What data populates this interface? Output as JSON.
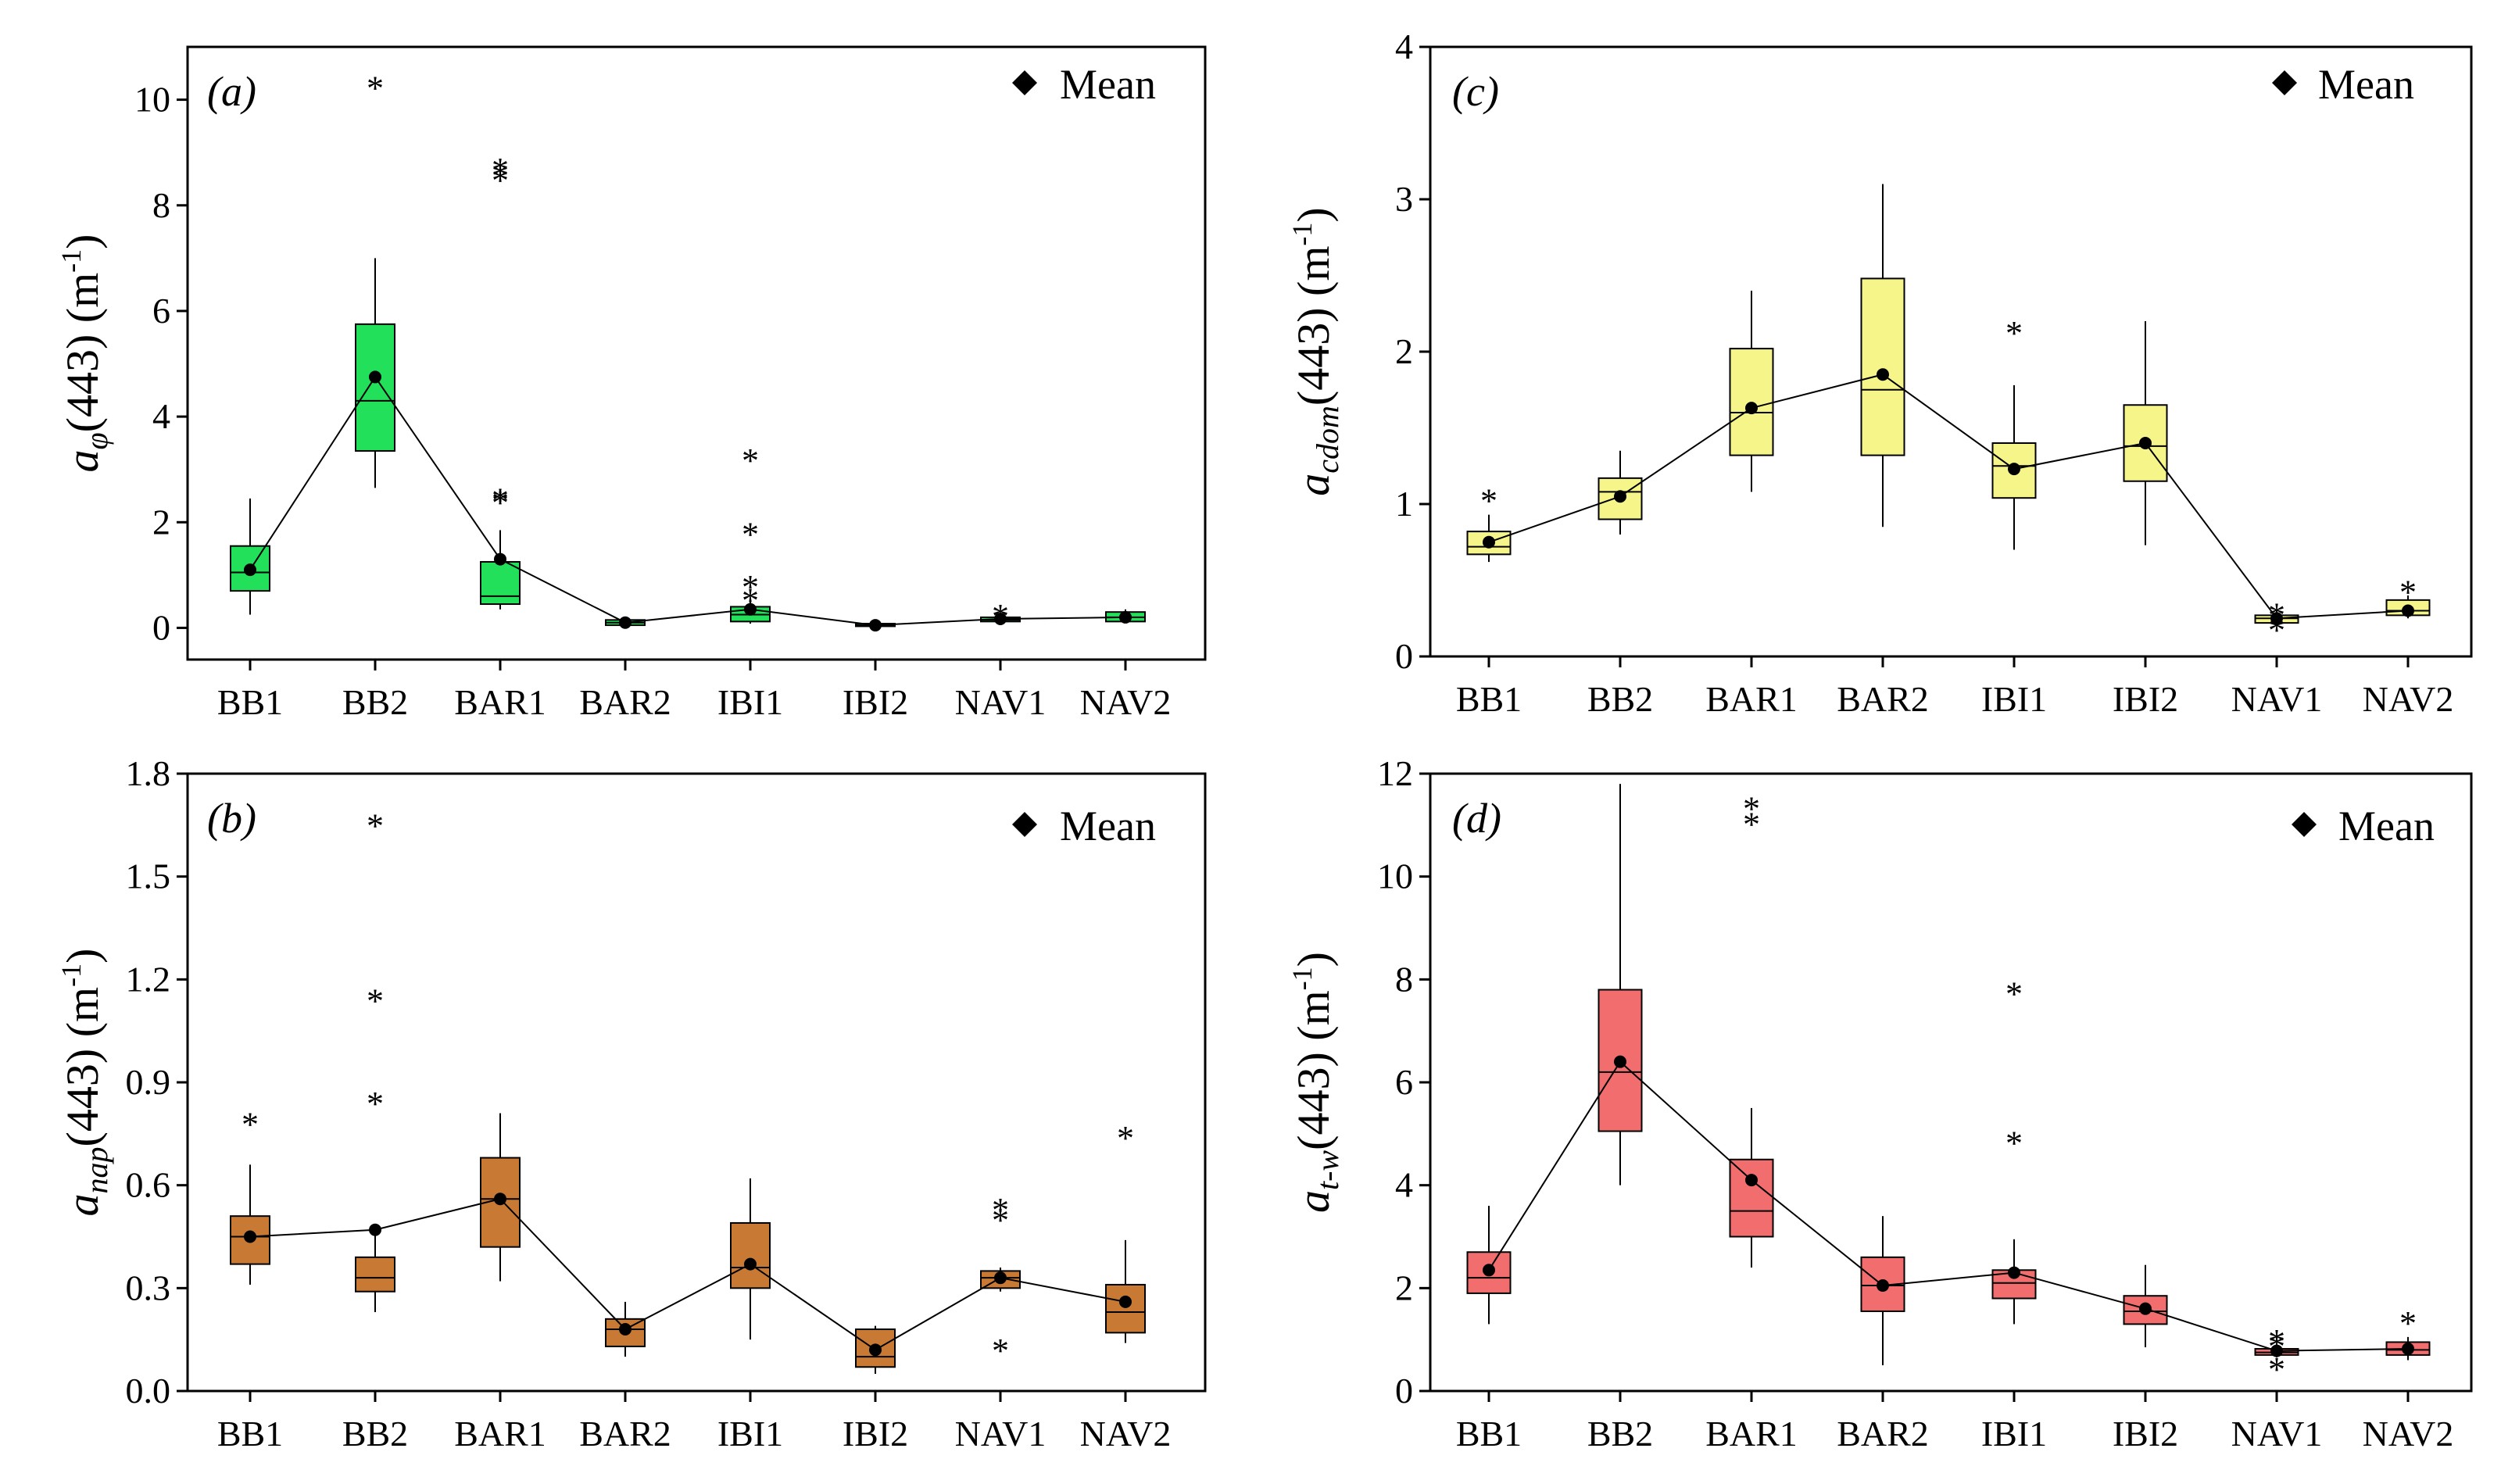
{
  "figure": {
    "legend_label": "Mean",
    "panels": [
      {
        "id": "a",
        "panel_label": "(a)",
        "ylabel_main": "a",
        "ylabel_sub": "φ",
        "ylabel_tail": "(443) (m",
        "ylabel_sup": "-1",
        "ylabel_close": ")",
        "color": "#22e05a"
      },
      {
        "id": "c",
        "panel_label": "(c)",
        "ylabel_main": "a",
        "ylabel_sub": "cdom",
        "ylabel_tail": "(443) (m",
        "ylabel_sup": "-1",
        "ylabel_close": ")",
        "color": "#f5f58a"
      },
      {
        "id": "b",
        "panel_label": "(b)",
        "ylabel_main": "a",
        "ylabel_sub": "nap",
        "ylabel_tail": "(443) (m",
        "ylabel_sup": "-1",
        "ylabel_close": ")",
        "color": "#c87a35"
      },
      {
        "id": "d",
        "panel_label": "(d)",
        "ylabel_main": "a",
        "ylabel_sub": "t-w",
        "ylabel_tail": "(443) (m",
        "ylabel_sup": "-1",
        "ylabel_close": ")",
        "color": "#f26e6e"
      }
    ]
  },
  "chart_data": [
    {
      "type": "box",
      "panel": "a",
      "title": "",
      "categories": [
        "BB1",
        "BB2",
        "BAR1",
        "BAR2",
        "IBI1",
        "IBI2",
        "NAV1",
        "NAV2"
      ],
      "ylim": [
        -0.6,
        11
      ],
      "yticks": [
        0,
        2,
        4,
        6,
        8,
        10
      ],
      "ytick_labels": [
        "0",
        "2",
        "4",
        "6",
        "8",
        "10"
      ],
      "boxes": [
        {
          "q1": 0.7,
          "median": 1.05,
          "q3": 1.55,
          "whisker_low": 0.25,
          "whisker_high": 2.45,
          "mean": 1.1,
          "outliers": []
        },
        {
          "q1": 3.35,
          "median": 4.3,
          "q3": 5.75,
          "whisker_low": 2.65,
          "whisker_high": 7.0,
          "mean": 4.75,
          "outliers": [
            10.3
          ]
        },
        {
          "q1": 0.45,
          "median": 0.6,
          "q3": 1.25,
          "whisker_low": 0.35,
          "whisker_high": 1.85,
          "mean": 1.3,
          "outliers": [
            2.45,
            2.5,
            8.55,
            8.65,
            8.75
          ]
        },
        {
          "q1": 0.05,
          "median": 0.1,
          "q3": 0.15,
          "whisker_low": 0.03,
          "whisker_high": 0.2,
          "mean": 0.1,
          "outliers": []
        },
        {
          "q1": 0.12,
          "median": 0.25,
          "q3": 0.4,
          "whisker_low": 0.08,
          "whisker_high": 0.55,
          "mean": 0.35,
          "outliers": [
            0.6,
            0.85,
            1.85,
            3.25
          ]
        },
        {
          "q1": 0.03,
          "median": 0.05,
          "q3": 0.08,
          "whisker_low": 0.02,
          "whisker_high": 0.1,
          "mean": 0.05,
          "outliers": []
        },
        {
          "q1": 0.12,
          "median": 0.15,
          "q3": 0.2,
          "whisker_low": 0.08,
          "whisker_high": 0.25,
          "mean": 0.17,
          "outliers": [
            0.3
          ]
        },
        {
          "q1": 0.12,
          "median": 0.2,
          "q3": 0.3,
          "whisker_low": 0.1,
          "whisker_high": 0.35,
          "mean": 0.2,
          "outliers": []
        }
      ]
    },
    {
      "type": "box",
      "panel": "c",
      "title": "",
      "categories": [
        "BB1",
        "BB2",
        "BAR1",
        "BAR2",
        "IBI1",
        "IBI2",
        "NAV1",
        "NAV2"
      ],
      "ylim": [
        0,
        4
      ],
      "yticks": [
        0,
        1,
        2,
        3,
        4
      ],
      "ytick_labels": [
        "0",
        "1",
        "2",
        "3",
        "4"
      ],
      "boxes": [
        {
          "q1": 0.67,
          "median": 0.72,
          "q3": 0.82,
          "whisker_low": 0.62,
          "whisker_high": 0.93,
          "mean": 0.75,
          "outliers": [
            1.05
          ]
        },
        {
          "q1": 0.9,
          "median": 1.08,
          "q3": 1.17,
          "whisker_low": 0.8,
          "whisker_high": 1.35,
          "mean": 1.05,
          "outliers": []
        },
        {
          "q1": 1.32,
          "median": 1.6,
          "q3": 2.02,
          "whisker_low": 1.08,
          "whisker_high": 2.4,
          "mean": 1.63,
          "outliers": []
        },
        {
          "q1": 1.32,
          "median": 1.75,
          "q3": 2.48,
          "whisker_low": 0.85,
          "whisker_high": 3.1,
          "mean": 1.85,
          "outliers": []
        },
        {
          "q1": 1.04,
          "median": 1.25,
          "q3": 1.4,
          "whisker_low": 0.7,
          "whisker_high": 1.78,
          "mean": 1.23,
          "outliers": [
            2.15
          ]
        },
        {
          "q1": 1.15,
          "median": 1.38,
          "q3": 1.65,
          "whisker_low": 0.73,
          "whisker_high": 2.2,
          "mean": 1.4,
          "outliers": []
        },
        {
          "q1": 0.22,
          "median": 0.25,
          "q3": 0.27,
          "whisker_low": 0.2,
          "whisker_high": 0.3,
          "mean": 0.25,
          "outliers": [
            0.2,
            0.3
          ]
        },
        {
          "q1": 0.27,
          "median": 0.3,
          "q3": 0.37,
          "whisker_low": 0.25,
          "whisker_high": 0.4,
          "mean": 0.3,
          "outliers": [
            0.45
          ]
        }
      ]
    },
    {
      "type": "box",
      "panel": "b",
      "title": "",
      "categories": [
        "BB1",
        "BB2",
        "BAR1",
        "BAR2",
        "IBI1",
        "IBI2",
        "NAV1",
        "NAV2"
      ],
      "ylim": [
        0,
        1.8
      ],
      "yticks": [
        0,
        0.3,
        0.6,
        0.9,
        1.2,
        1.5,
        1.8
      ],
      "ytick_labels": [
        "0.0",
        "0.3",
        "0.6",
        "0.9",
        "1.2",
        "1.5",
        "1.8"
      ],
      "boxes": [
        {
          "q1": 0.37,
          "median": 0.45,
          "q3": 0.51,
          "whisker_low": 0.31,
          "whisker_high": 0.66,
          "mean": 0.45,
          "outliers": [
            0.79
          ]
        },
        {
          "q1": 0.29,
          "median": 0.33,
          "q3": 0.39,
          "whisker_low": 0.23,
          "whisker_high": 0.47,
          "mean": 0.47,
          "outliers": [
            0.85,
            1.15,
            1.66
          ]
        },
        {
          "q1": 0.42,
          "median": 0.56,
          "q3": 0.68,
          "whisker_low": 0.32,
          "whisker_high": 0.81,
          "mean": 0.56,
          "outliers": []
        },
        {
          "q1": 0.13,
          "median": 0.18,
          "q3": 0.21,
          "whisker_low": 0.1,
          "whisker_high": 0.26,
          "mean": 0.18,
          "outliers": []
        },
        {
          "q1": 0.3,
          "median": 0.36,
          "q3": 0.49,
          "whisker_low": 0.15,
          "whisker_high": 0.62,
          "mean": 0.37,
          "outliers": []
        },
        {
          "q1": 0.07,
          "median": 0.1,
          "q3": 0.18,
          "whisker_low": 0.05,
          "whisker_high": 0.19,
          "mean": 0.12,
          "outliers": []
        },
        {
          "q1": 0.3,
          "median": 0.33,
          "q3": 0.35,
          "whisker_low": 0.29,
          "whisker_high": 0.36,
          "mean": 0.33,
          "outliers": [
            0.13,
            0.51,
            0.54
          ]
        },
        {
          "q1": 0.17,
          "median": 0.23,
          "q3": 0.31,
          "whisker_low": 0.14,
          "whisker_high": 0.44,
          "mean": 0.26,
          "outliers": [
            0.75
          ]
        }
      ]
    },
    {
      "type": "box",
      "panel": "d",
      "title": "",
      "categories": [
        "BB1",
        "BB2",
        "BAR1",
        "BAR2",
        "IBI1",
        "IBI2",
        "NAV1",
        "NAV2"
      ],
      "ylim": [
        0,
        12
      ],
      "yticks": [
        0,
        2,
        4,
        6,
        8,
        10,
        12
      ],
      "ytick_labels": [
        "0",
        "2",
        "4",
        "6",
        "8",
        "10",
        "12"
      ],
      "boxes": [
        {
          "q1": 1.9,
          "median": 2.2,
          "q3": 2.7,
          "whisker_low": 1.3,
          "whisker_high": 3.6,
          "mean": 2.35,
          "outliers": []
        },
        {
          "q1": 5.05,
          "median": 6.2,
          "q3": 7.8,
          "whisker_low": 4.0,
          "whisker_high": 11.8,
          "mean": 6.4,
          "outliers": []
        },
        {
          "q1": 3.0,
          "median": 3.5,
          "q3": 4.5,
          "whisker_low": 2.4,
          "whisker_high": 5.5,
          "mean": 4.1,
          "outliers": [
            11.1,
            11.4
          ]
        },
        {
          "q1": 1.55,
          "median": 2.05,
          "q3": 2.6,
          "whisker_low": 0.5,
          "whisker_high": 3.4,
          "mean": 2.05,
          "outliers": []
        },
        {
          "q1": 1.8,
          "median": 2.1,
          "q3": 2.35,
          "whisker_low": 1.3,
          "whisker_high": 2.95,
          "mean": 2.3,
          "outliers": [
            4.9,
            7.8
          ]
        },
        {
          "q1": 1.3,
          "median": 1.55,
          "q3": 1.85,
          "whisker_low": 0.85,
          "whisker_high": 2.45,
          "mean": 1.6,
          "outliers": []
        },
        {
          "q1": 0.7,
          "median": 0.75,
          "q3": 0.82,
          "whisker_low": 0.65,
          "whisker_high": 0.9,
          "mean": 0.78,
          "outliers": [
            0.5,
            0.95,
            1.05
          ]
        },
        {
          "q1": 0.7,
          "median": 0.8,
          "q3": 0.95,
          "whisker_low": 0.6,
          "whisker_high": 1.05,
          "mean": 0.82,
          "outliers": [
            1.4
          ]
        }
      ]
    }
  ]
}
